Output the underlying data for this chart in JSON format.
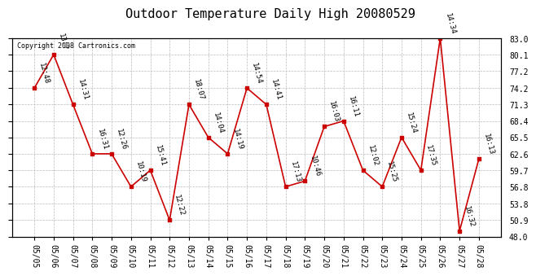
{
  "title": "Outdoor Temperature Daily High 20080529",
  "copyright_text": "Copyright 2008 Cartronics.com",
  "background_color": "#ffffff",
  "plot_bg_color": "#ffffff",
  "grid_color": "#bbbbbb",
  "line_color": "#cc0000",
  "marker_color": "#cc0000",
  "dates": [
    "05/05",
    "05/06",
    "05/07",
    "05/08",
    "05/09",
    "05/10",
    "05/11",
    "05/12",
    "05/13",
    "05/14",
    "05/15",
    "05/16",
    "05/17",
    "05/18",
    "05/19",
    "05/20",
    "05/21",
    "05/22",
    "05/23",
    "05/24",
    "05/25",
    "05/26",
    "05/27",
    "05/28"
  ],
  "temps": [
    74.2,
    80.1,
    71.3,
    62.6,
    62.6,
    56.8,
    59.7,
    50.9,
    71.3,
    65.5,
    62.6,
    74.2,
    71.3,
    56.8,
    57.8,
    67.4,
    68.4,
    59.7,
    56.8,
    65.5,
    59.7,
    83.0,
    49.0,
    61.7
  ],
  "time_labels": [
    "12:48",
    "13:?",
    "14:31",
    "16:31",
    "12:26",
    "10:19",
    "15:41",
    "12:22",
    "18:07",
    "14:04",
    "14:19",
    "14:54",
    "14:41",
    "17:13",
    "10:46",
    "16:03",
    "16:11",
    "12:02",
    "15:25",
    "15:24",
    "17:35",
    "14:34",
    "16:32",
    "16:13"
  ],
  "ylim": [
    48.0,
    83.0
  ],
  "yticks": [
    48.0,
    50.9,
    53.8,
    56.8,
    59.7,
    62.6,
    65.5,
    68.4,
    71.3,
    74.2,
    77.2,
    80.1,
    83.0
  ],
  "title_fontsize": 11,
  "tick_fontsize": 7,
  "label_fontsize": 6.5,
  "copyright_fontsize": 6
}
